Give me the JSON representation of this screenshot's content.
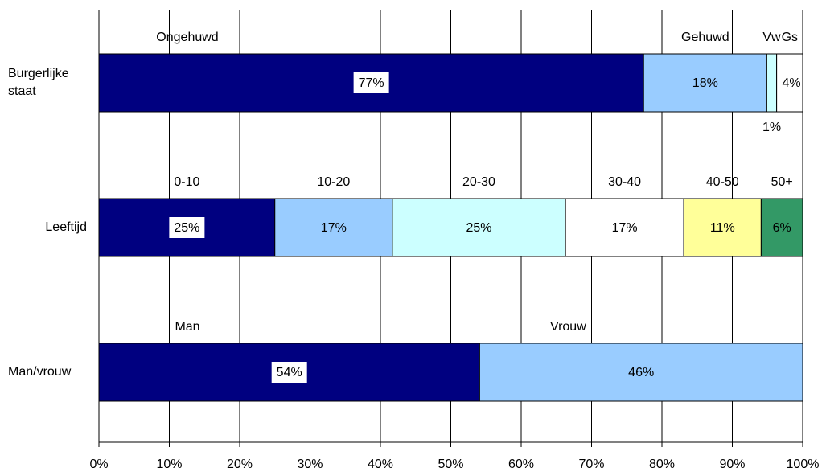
{
  "chart_data": {
    "type": "stacked-barh",
    "xlim": [
      0,
      100
    ],
    "xticks": [
      {
        "value": 0,
        "label": "0%"
      },
      {
        "value": 10,
        "label": "10%"
      },
      {
        "value": 20,
        "label": "20%"
      },
      {
        "value": 30,
        "label": "30%"
      },
      {
        "value": 40,
        "label": "40%"
      },
      {
        "value": 50,
        "label": "50%"
      },
      {
        "value": 60,
        "label": "60%"
      },
      {
        "value": 70,
        "label": "70%"
      },
      {
        "value": 80,
        "label": "80%"
      },
      {
        "value": 90,
        "label": "90%"
      },
      {
        "value": 100,
        "label": "100%"
      }
    ],
    "grid": true,
    "bars": [
      {
        "category": "Burgerlijke staat",
        "segments": [
          {
            "name": "Ongehuwd",
            "color": "#000080",
            "value": 77.4,
            "value_label": "77%"
          },
          {
            "name": "Gehuwd",
            "color": "#99ccff",
            "value": 17.5,
            "value_label": "18%"
          },
          {
            "name": "Vw",
            "color": "#ccffff",
            "value": 1.4,
            "value_label": "1%"
          },
          {
            "name": "Gs",
            "color": "#ffffff",
            "value": 3.7,
            "value_label": "4%"
          }
        ]
      },
      {
        "category": "Leeftijd",
        "segments": [
          {
            "name": "0-10",
            "color": "#000080",
            "value": 25.0,
            "value_label": "25%"
          },
          {
            "name": "10-20",
            "color": "#99ccff",
            "value": 16.7,
            "value_label": "17%"
          },
          {
            "name": "20-30",
            "color": "#ccffff",
            "value": 24.6,
            "value_label": "25%"
          },
          {
            "name": "30-40",
            "color": "#ffffff",
            "value": 16.8,
            "value_label": "17%"
          },
          {
            "name": "40-50",
            "color": "#ffff99",
            "value": 11.0,
            "value_label": "11%"
          },
          {
            "name": "50+",
            "color": "#339966",
            "value": 5.9,
            "value_label": "6%"
          }
        ]
      },
      {
        "category": "Man/vrouw",
        "segments": [
          {
            "name": "Man",
            "color": "#000080",
            "value": 54.1,
            "value_label": "54%"
          },
          {
            "name": "Vrouw",
            "color": "#99ccff",
            "value": 45.9,
            "value_label": "46%"
          }
        ]
      }
    ]
  }
}
